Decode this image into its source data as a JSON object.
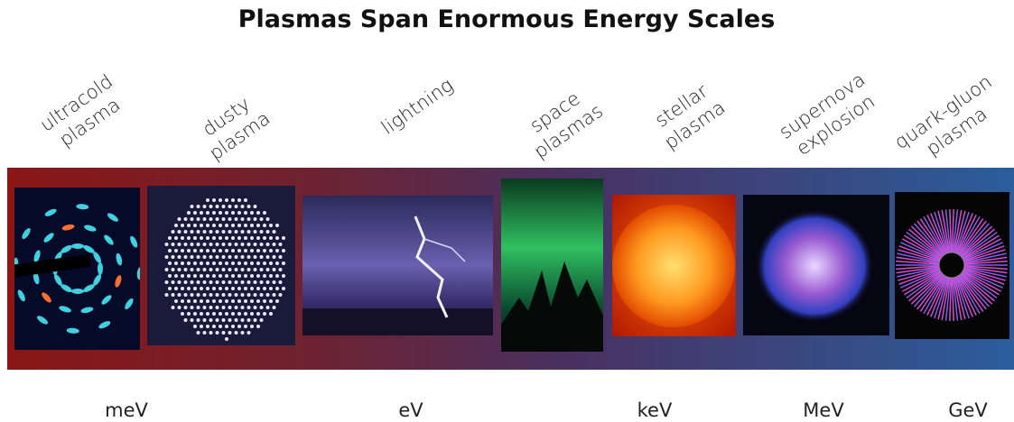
{
  "title": "Plasmas Span Enormous Energy Scales",
  "items": [
    {
      "lines": [
        "ultracold",
        "plasma"
      ]
    },
    {
      "lines": [
        "dusty",
        "plasma"
      ]
    },
    {
      "lines": [
        "lightning"
      ]
    },
    {
      "lines": [
        "space",
        "plasmas"
      ]
    },
    {
      "lines": [
        "stellar",
        "plasma"
      ]
    },
    {
      "lines": [
        "supernova",
        "explosion"
      ]
    },
    {
      "lines": [
        "quark-gluon",
        "plasma"
      ]
    }
  ],
  "scale": [
    "meV",
    "eV",
    "keV",
    "MeV",
    "GeV"
  ]
}
